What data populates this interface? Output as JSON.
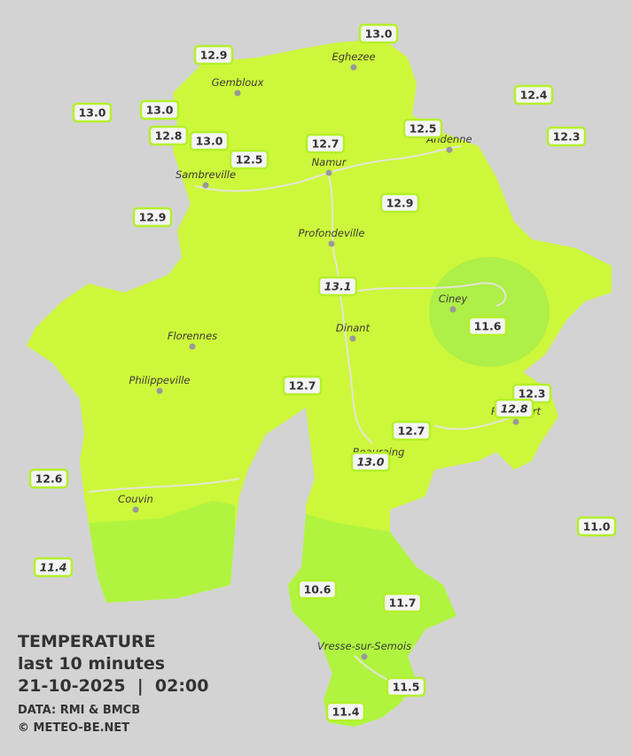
{
  "map": {
    "stations": [
      {
        "label": "13.0"
      },
      {
        "label": "12.9"
      },
      {
        "label": "13.0"
      },
      {
        "label": "13.0"
      },
      {
        "label": "12.4"
      },
      {
        "label": "12.8"
      },
      {
        "label": "13.0"
      },
      {
        "label": "12.5"
      },
      {
        "label": "12.3"
      },
      {
        "label": "12.7"
      },
      {
        "label": "12.5"
      },
      {
        "label": "12.9"
      },
      {
        "label": "12.9"
      },
      {
        "label": "13.1",
        "italic": true
      },
      {
        "label": "11.6"
      },
      {
        "label": "12.7"
      },
      {
        "label": "12.3"
      },
      {
        "label": "12.8",
        "italic": true
      },
      {
        "label": "12.7"
      },
      {
        "label": "13.0",
        "italic": true
      },
      {
        "label": "12.6"
      },
      {
        "label": "11.0"
      },
      {
        "label": "11.4",
        "italic": true
      },
      {
        "label": "10.6"
      },
      {
        "label": "11.7"
      },
      {
        "label": "11.5"
      },
      {
        "label": "11.4"
      }
    ],
    "cities": [
      "Eghezee",
      "Gembloux",
      "Andenne",
      "Namur",
      "Sambreville",
      "Profondeville",
      "Ciney",
      "Dinant",
      "Florennes",
      "Philippeville",
      "Rochefort",
      "Beauraing",
      "Couvin",
      "Vresse-sur-Semois"
    ],
    "legend": {
      "title": "TEMPERATURE",
      "period": "last 10 minutes",
      "datetime": "21-10-2025  |  02:00",
      "source": "DATA: RMI & BMCB",
      "credit": "© METEO-BE.NET"
    }
  }
}
